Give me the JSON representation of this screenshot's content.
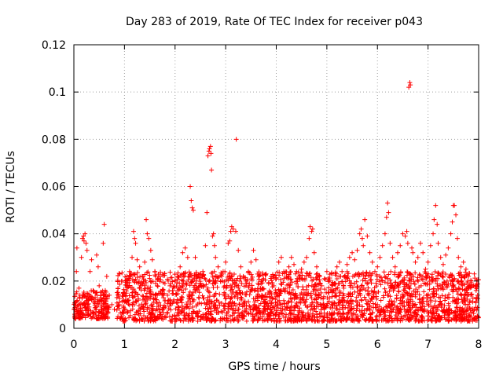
{
  "chart_data": {
    "type": "scatter",
    "title": "Day 283 of 2019, Rate Of TEC Index for receiver p043",
    "xlabel": "GPS time / hours",
    "ylabel": "ROTI / TECUs",
    "xlim": [
      0,
      8
    ],
    "ylim": [
      0,
      0.12
    ],
    "x_ticks": [
      0,
      1,
      2,
      3,
      4,
      5,
      6,
      7,
      8
    ],
    "x_tick_labels": [
      "0",
      "1",
      "2",
      "3",
      "4",
      "5",
      "6",
      "7",
      "8"
    ],
    "y_ticks": [
      0,
      0.02,
      0.04,
      0.06,
      0.08,
      0.1,
      0.12
    ],
    "y_tick_labels": [
      "0",
      "0.02",
      "0.04",
      "0.06",
      "0.08",
      "0.1",
      "0.12"
    ],
    "grid": true,
    "marker": "+",
    "marker_color": "#ff0000",
    "series": [
      {
        "name": "ROTI",
        "points": [
          [
            0.02,
            0.008
          ],
          [
            0.04,
            0.011
          ],
          [
            0.05,
            0.024
          ],
          [
            0.06,
            0.034
          ],
          [
            0.08,
            0.006
          ],
          [
            0.1,
            0.017
          ],
          [
            0.12,
            0.014
          ],
          [
            0.15,
            0.03
          ],
          [
            0.17,
            0.038
          ],
          [
            0.19,
            0.039
          ],
          [
            0.2,
            0.037
          ],
          [
            0.22,
            0.04
          ],
          [
            0.24,
            0.036
          ],
          [
            0.26,
            0.033
          ],
          [
            0.28,
            0.012
          ],
          [
            0.3,
            0.009
          ],
          [
            0.32,
            0.024
          ],
          [
            0.35,
            0.029
          ],
          [
            0.38,
            0.016
          ],
          [
            0.4,
            0.011
          ],
          [
            0.42,
            0.013
          ],
          [
            0.45,
            0.031
          ],
          [
            0.48,
            0.026
          ],
          [
            0.5,
            0.018
          ],
          [
            0.53,
            0.012
          ],
          [
            0.55,
            0.009
          ],
          [
            0.58,
            0.036
          ],
          [
            0.6,
            0.044
          ],
          [
            0.62,
            0.016
          ],
          [
            0.65,
            0.022
          ],
          [
            0.7,
            0.014
          ],
          [
            0.75,
            0.01
          ],
          [
            0.8,
            0.008
          ],
          [
            0.85,
            0.013
          ],
          [
            0.9,
            0.011
          ],
          [
            0.95,
            0.02
          ],
          [
            1.0,
            0.015
          ],
          [
            1.05,
            0.018
          ],
          [
            1.1,
            0.024
          ],
          [
            1.15,
            0.03
          ],
          [
            1.18,
            0.041
          ],
          [
            1.2,
            0.038
          ],
          [
            1.22,
            0.036
          ],
          [
            1.25,
            0.029
          ],
          [
            1.3,
            0.026
          ],
          [
            1.35,
            0.022
          ],
          [
            1.4,
            0.028
          ],
          [
            1.43,
            0.046
          ],
          [
            1.45,
            0.04
          ],
          [
            1.48,
            0.038
          ],
          [
            1.52,
            0.033
          ],
          [
            1.55,
            0.029
          ],
          [
            1.6,
            0.024
          ],
          [
            1.65,
            0.018
          ],
          [
            1.7,
            0.022
          ],
          [
            1.75,
            0.016
          ],
          [
            1.8,
            0.019
          ],
          [
            1.85,
            0.014
          ],
          [
            1.9,
            0.018
          ],
          [
            1.95,
            0.016
          ],
          [
            2.0,
            0.02
          ],
          [
            2.05,
            0.022
          ],
          [
            2.1,
            0.026
          ],
          [
            2.15,
            0.032
          ],
          [
            2.2,
            0.034
          ],
          [
            2.25,
            0.03
          ],
          [
            2.3,
            0.06
          ],
          [
            2.32,
            0.054
          ],
          [
            2.34,
            0.051
          ],
          [
            2.36,
            0.05
          ],
          [
            2.4,
            0.03
          ],
          [
            2.45,
            0.022
          ],
          [
            2.5,
            0.019
          ],
          [
            2.55,
            0.024
          ],
          [
            2.6,
            0.035
          ],
          [
            2.63,
            0.049
          ],
          [
            2.65,
            0.073
          ],
          [
            2.67,
            0.075
          ],
          [
            2.68,
            0.076
          ],
          [
            2.7,
            0.077
          ],
          [
            2.71,
            0.074
          ],
          [
            2.72,
            0.067
          ],
          [
            2.74,
            0.039
          ],
          [
            2.76,
            0.04
          ],
          [
            2.78,
            0.035
          ],
          [
            2.8,
            0.03
          ],
          [
            2.85,
            0.026
          ],
          [
            2.9,
            0.02
          ],
          [
            2.95,
            0.024
          ],
          [
            3.0,
            0.028
          ],
          [
            3.05,
            0.036
          ],
          [
            3.08,
            0.037
          ],
          [
            3.1,
            0.041
          ],
          [
            3.12,
            0.043
          ],
          [
            3.15,
            0.042
          ],
          [
            3.2,
            0.041
          ],
          [
            3.21,
            0.08
          ],
          [
            3.25,
            0.033
          ],
          [
            3.3,
            0.026
          ],
          [
            3.35,
            0.022
          ],
          [
            3.4,
            0.018
          ],
          [
            3.45,
            0.024
          ],
          [
            3.5,
            0.028
          ],
          [
            3.55,
            0.033
          ],
          [
            3.6,
            0.029
          ],
          [
            3.65,
            0.022
          ],
          [
            3.7,
            0.019
          ],
          [
            3.75,
            0.021
          ],
          [
            3.8,
            0.023
          ],
          [
            3.85,
            0.019
          ],
          [
            3.9,
            0.022
          ],
          [
            3.95,
            0.018
          ],
          [
            4.0,
            0.021
          ],
          [
            4.05,
            0.028
          ],
          [
            4.1,
            0.03
          ],
          [
            4.15,
            0.024
          ],
          [
            4.2,
            0.022
          ],
          [
            4.25,
            0.026
          ],
          [
            4.3,
            0.03
          ],
          [
            4.35,
            0.027
          ],
          [
            4.4,
            0.024
          ],
          [
            4.45,
            0.022
          ],
          [
            4.5,
            0.025
          ],
          [
            4.55,
            0.028
          ],
          [
            4.6,
            0.03
          ],
          [
            4.65,
            0.038
          ],
          [
            4.67,
            0.043
          ],
          [
            4.7,
            0.041
          ],
          [
            4.72,
            0.042
          ],
          [
            4.75,
            0.032
          ],
          [
            4.8,
            0.026
          ],
          [
            4.85,
            0.022
          ],
          [
            4.9,
            0.018
          ],
          [
            4.95,
            0.021
          ],
          [
            5.0,
            0.024
          ],
          [
            5.05,
            0.02
          ],
          [
            5.1,
            0.023
          ],
          [
            5.15,
            0.019
          ],
          [
            5.2,
            0.026
          ],
          [
            5.25,
            0.028
          ],
          [
            5.3,
            0.024
          ],
          [
            5.35,
            0.022
          ],
          [
            5.4,
            0.027
          ],
          [
            5.45,
            0.03
          ],
          [
            5.5,
            0.032
          ],
          [
            5.55,
            0.029
          ],
          [
            5.6,
            0.033
          ],
          [
            5.65,
            0.04
          ],
          [
            5.68,
            0.042
          ],
          [
            5.7,
            0.038
          ],
          [
            5.72,
            0.035
          ],
          [
            5.75,
            0.046
          ],
          [
            5.8,
            0.039
          ],
          [
            5.85,
            0.032
          ],
          [
            5.9,
            0.028
          ],
          [
            5.95,
            0.024
          ],
          [
            6.0,
            0.026
          ],
          [
            6.05,
            0.03
          ],
          [
            6.1,
            0.035
          ],
          [
            6.15,
            0.04
          ],
          [
            6.18,
            0.047
          ],
          [
            6.2,
            0.053
          ],
          [
            6.22,
            0.049
          ],
          [
            6.25,
            0.036
          ],
          [
            6.3,
            0.03
          ],
          [
            6.35,
            0.026
          ],
          [
            6.4,
            0.032
          ],
          [
            6.45,
            0.035
          ],
          [
            6.5,
            0.04
          ],
          [
            6.55,
            0.039
          ],
          [
            6.58,
            0.041
          ],
          [
            6.6,
            0.036
          ],
          [
            6.62,
            0.102
          ],
          [
            6.64,
            0.104
          ],
          [
            6.65,
            0.103
          ],
          [
            6.68,
            0.034
          ],
          [
            6.7,
            0.032
          ],
          [
            6.75,
            0.028
          ],
          [
            6.8,
            0.03
          ],
          [
            6.85,
            0.036
          ],
          [
            6.9,
            0.032
          ],
          [
            6.95,
            0.025
          ],
          [
            7.0,
            0.028
          ],
          [
            7.05,
            0.035
          ],
          [
            7.1,
            0.04
          ],
          [
            7.12,
            0.046
          ],
          [
            7.15,
            0.052
          ],
          [
            7.18,
            0.044
          ],
          [
            7.2,
            0.036
          ],
          [
            7.25,
            0.03
          ],
          [
            7.3,
            0.027
          ],
          [
            7.35,
            0.031
          ],
          [
            7.4,
            0.034
          ],
          [
            7.45,
            0.04
          ],
          [
            7.48,
            0.045
          ],
          [
            7.5,
            0.052
          ],
          [
            7.52,
            0.052
          ],
          [
            7.55,
            0.048
          ],
          [
            7.58,
            0.038
          ],
          [
            7.6,
            0.03
          ],
          [
            7.65,
            0.026
          ],
          [
            7.7,
            0.028
          ],
          [
            7.75,
            0.025
          ],
          [
            7.8,
            0.022
          ],
          [
            7.85,
            0.02
          ],
          [
            7.9,
            0.018
          ],
          [
            7.95,
            0.016
          ],
          [
            7.98,
            0.014
          ]
        ]
      }
    ],
    "noise_band": {
      "description": "dense background cloud of ROTI samples",
      "segments": [
        {
          "x_range": [
            0.0,
            0.7
          ],
          "y_range": [
            0.004,
            0.016
          ]
        },
        {
          "x_range": [
            0.85,
            8.0
          ],
          "y_range": [
            0.003,
            0.024
          ]
        }
      ],
      "count": 2600,
      "seed": 283
    }
  }
}
